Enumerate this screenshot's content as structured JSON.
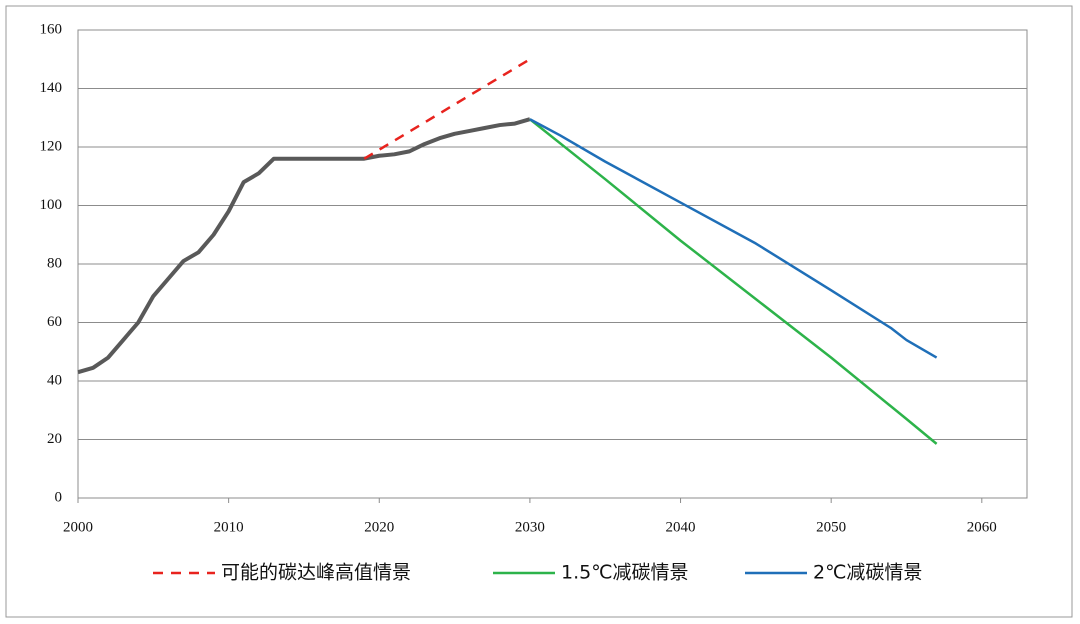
{
  "chart_data": {
    "type": "line",
    "xlim": [
      2000,
      2063
    ],
    "xticks": [
      2000,
      2010,
      2020,
      2030,
      2040,
      2050,
      2060
    ],
    "ylim": [
      0,
      160
    ],
    "yticks": [
      0,
      20,
      40,
      60,
      80,
      100,
      120,
      140,
      160
    ],
    "grid": true,
    "legend": "bottom",
    "series": [
      {
        "color": "#595959",
        "dash": false,
        "x": [
          2000,
          2001,
          2002,
          2003,
          2004,
          2005,
          2006,
          2007,
          2008,
          2009,
          2010,
          2011,
          2012,
          2013,
          2014,
          2015,
          2016,
          2017,
          2018,
          2019,
          2020,
          2021,
          2022,
          2023,
          2024,
          2025,
          2026,
          2027,
          2028,
          2029,
          2030
        ],
        "values": [
          43,
          44.5,
          48,
          54,
          60,
          69,
          75,
          81,
          84,
          90,
          98,
          108,
          111,
          116,
          116,
          116,
          116,
          116,
          116,
          116,
          117,
          117.5,
          118.5,
          121,
          123,
          124.5,
          125.5,
          126.5,
          127.5,
          128,
          129.5
        ]
      },
      {
        "name": "可能的碳达峰高值情景",
        "color": "#e8231e",
        "dash": true,
        "x": [
          2019,
          2030
        ],
        "values": [
          116,
          150
        ]
      },
      {
        "name": "1.5℃减碳情景",
        "color": "#2db34a",
        "dash": false,
        "x": [
          2030,
          2035,
          2040,
          2045,
          2050,
          2055,
          2057
        ],
        "values": [
          129.5,
          109,
          88,
          68,
          48,
          27,
          18.5
        ]
      },
      {
        "name": "2℃减碳情景",
        "color": "#1f6fb8",
        "dash": false,
        "x": [
          2030,
          2032,
          2035,
          2040,
          2045,
          2050,
          2054,
          2055,
          2057
        ],
        "values": [
          129.5,
          124,
          115,
          101,
          87,
          71,
          58,
          54,
          48
        ]
      }
    ]
  }
}
